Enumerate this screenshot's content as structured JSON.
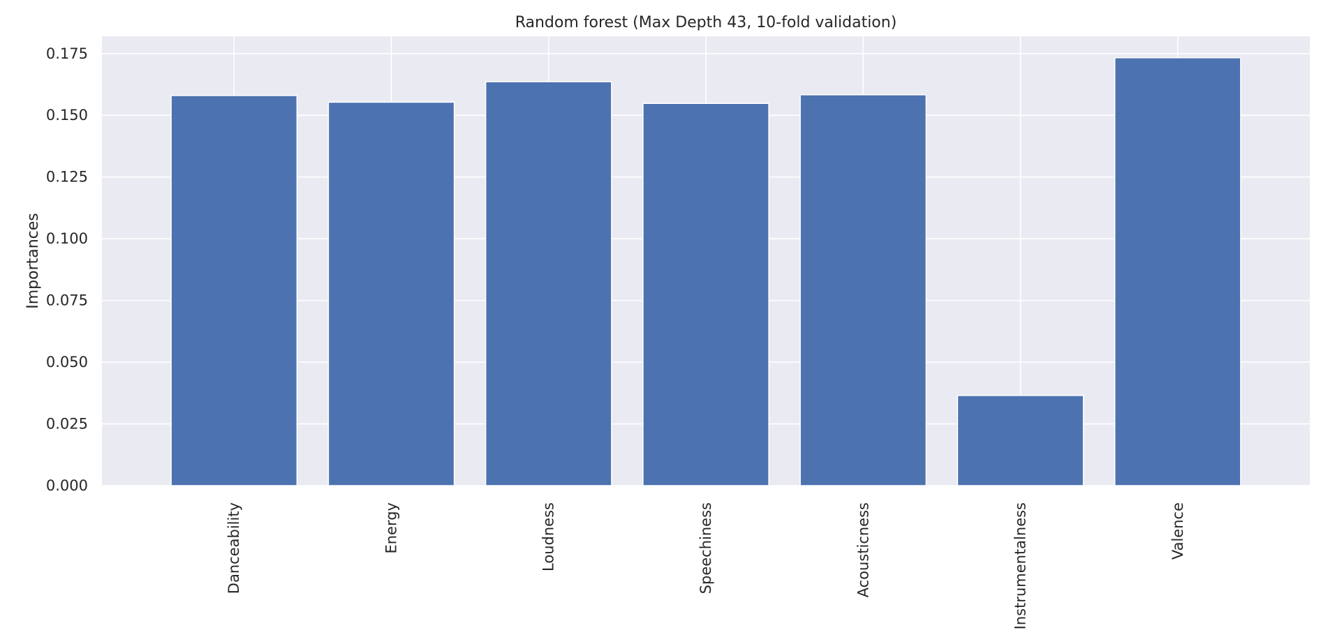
{
  "chart_data": {
    "type": "bar",
    "title": "Random forest (Max Depth 43, 10-fold validation)",
    "xlabel": "",
    "ylabel": "Importances",
    "categories": [
      "Danceability",
      "Energy",
      "Loudness",
      "Speechiness",
      "Acousticness",
      "Instrumentalness",
      "Valence"
    ],
    "values": [
      0.158,
      0.1553,
      0.1636,
      0.1548,
      0.1583,
      0.0365,
      0.1733
    ],
    "ylim": [
      0,
      0.182
    ],
    "yticks": [
      "0.000",
      "0.025",
      "0.050",
      "0.075",
      "0.100",
      "0.125",
      "0.150",
      "0.175"
    ],
    "grid": true,
    "legend": "none",
    "colors": {
      "bar": "#4c72b0",
      "background": "#eaeaf2",
      "grid": "#ffffff",
      "text": "#262626"
    }
  }
}
